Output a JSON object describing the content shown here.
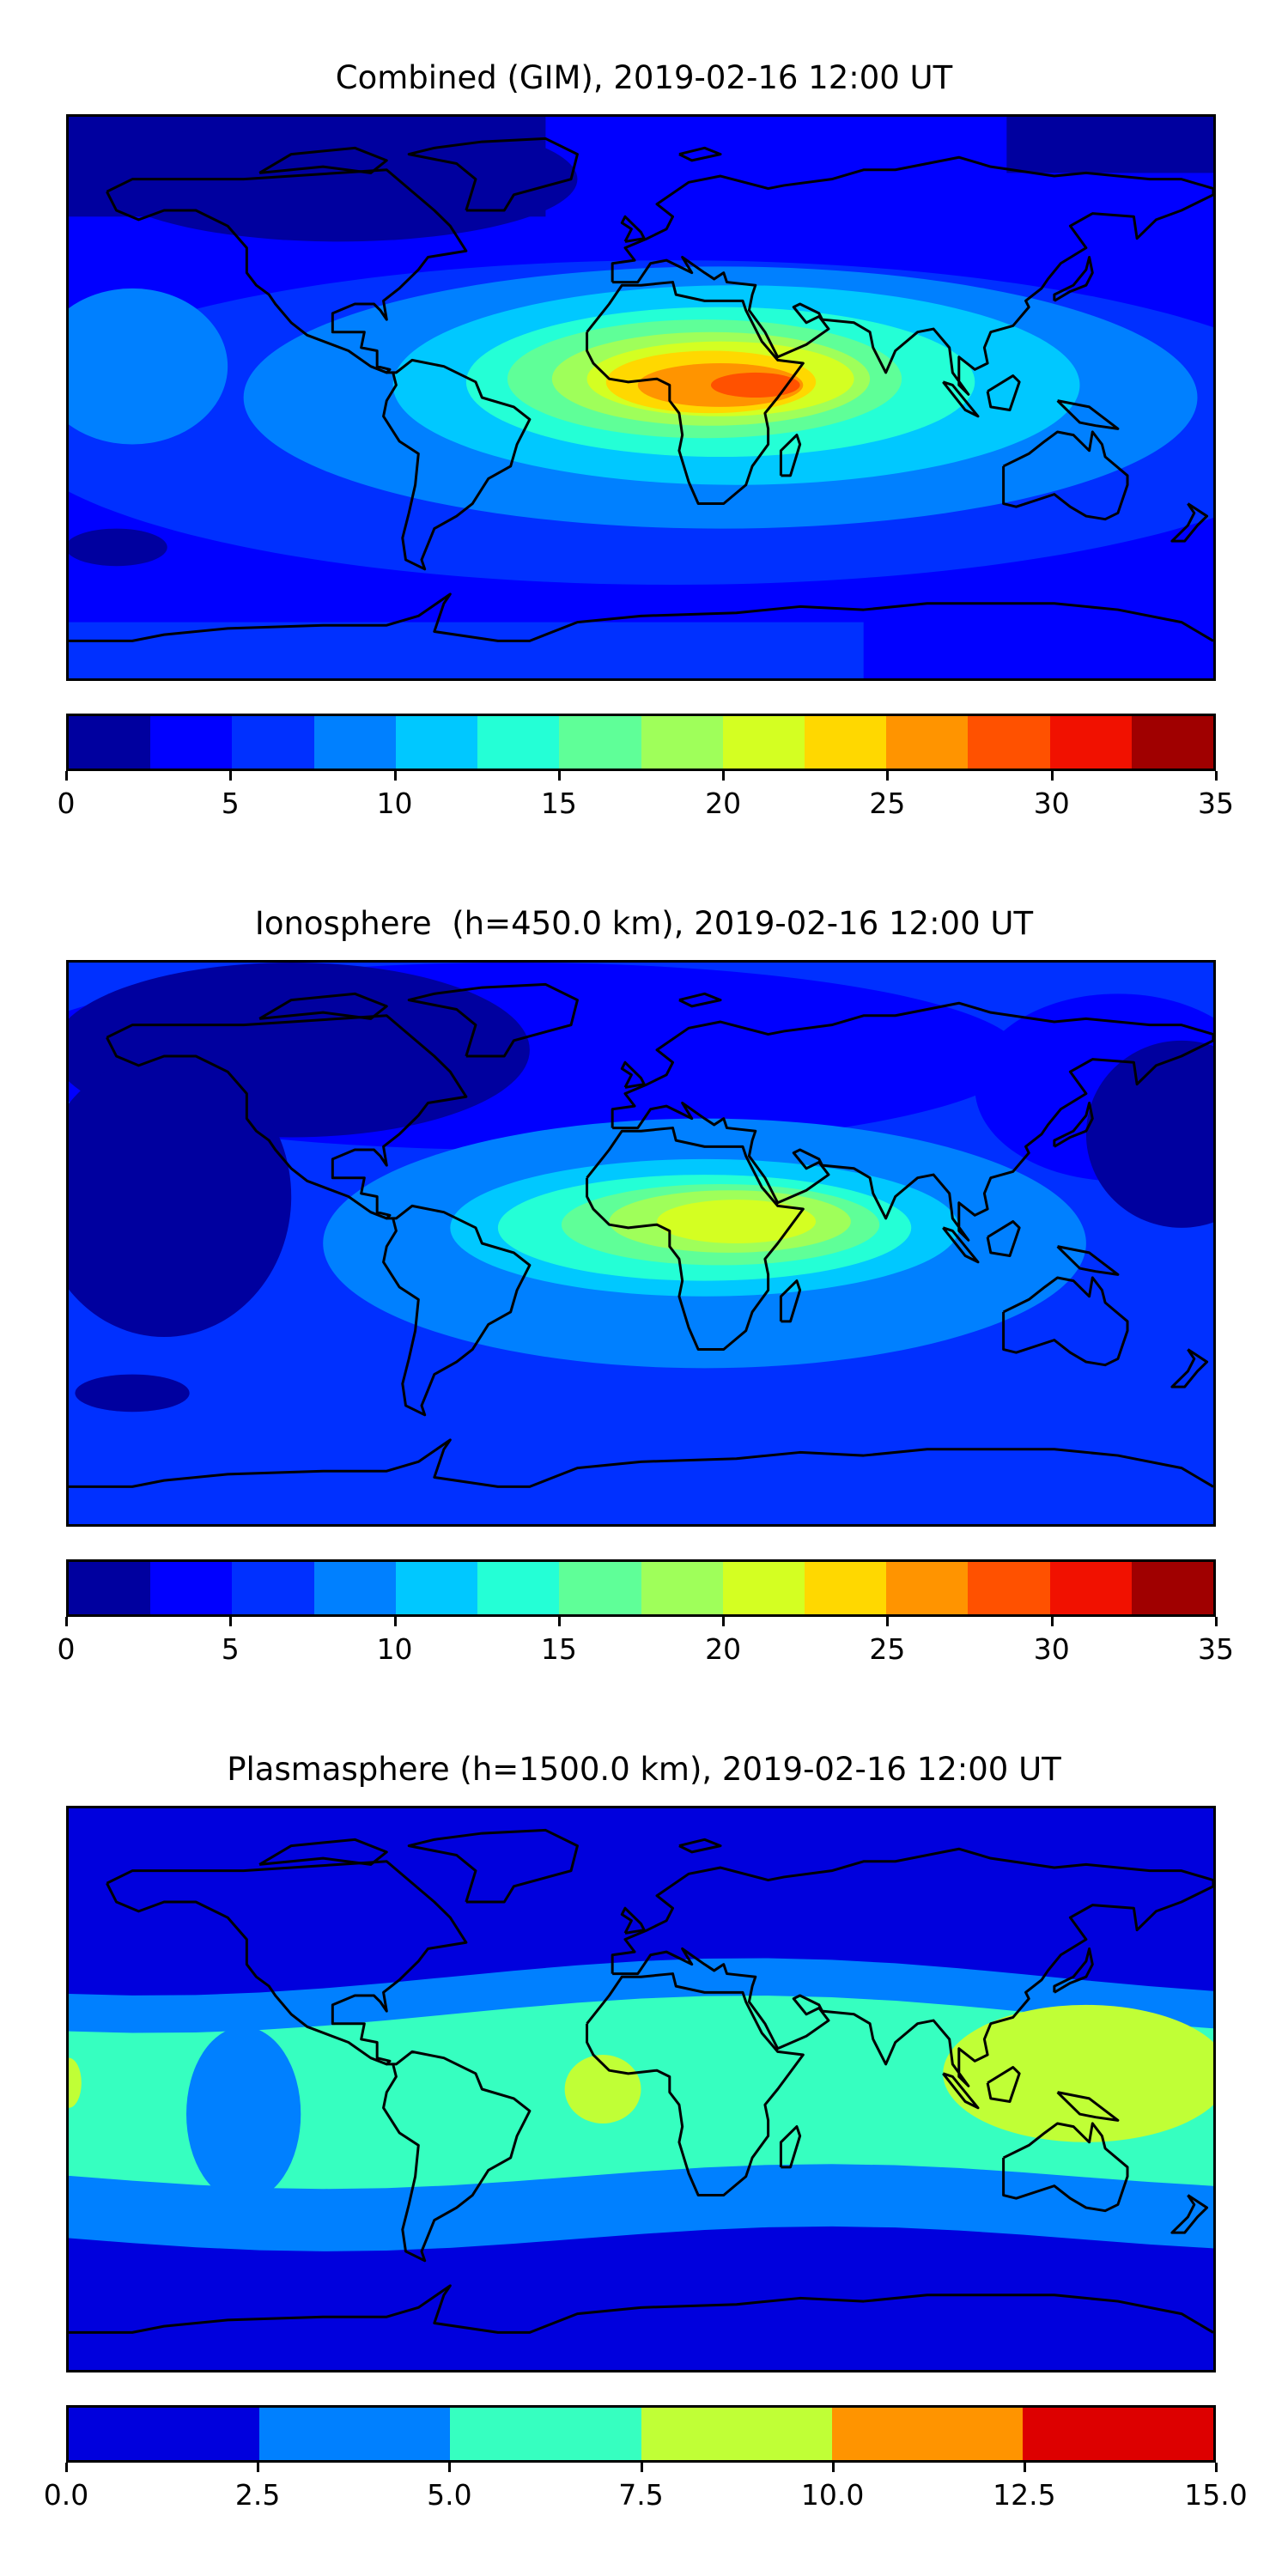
{
  "chart_data": [
    {
      "type": "heatmap",
      "subtype": "filled-contour-map",
      "title": "Combined (GIM), 2019-02-16 12:00 UT",
      "levels": [
        0,
        2.5,
        5,
        7.5,
        10,
        12.5,
        15,
        17.5,
        20,
        22.5,
        25,
        27.5,
        30,
        32.5,
        35
      ],
      "colors": [
        "#00009f",
        "#0000ff",
        "#0030ff",
        "#0080ff",
        "#00c8ff",
        "#24ffd6",
        "#5fff98",
        "#9fff5a",
        "#d4ff22",
        "#ffd800",
        "#ff9400",
        "#ff5100",
        "#f11100",
        "#a00000"
      ],
      "tick_labels": [
        "0",
        "5",
        "10",
        "15",
        "20",
        "25",
        "30",
        "35"
      ],
      "max_region": "central Africa / Indian Ocean, 27.5-30"
    },
    {
      "type": "heatmap",
      "subtype": "filled-contour-map",
      "title": "Ionosphere  (h=450.0 km), 2019-02-16 12:00 UT",
      "levels": [
        0,
        2.5,
        5,
        7.5,
        10,
        12.5,
        15,
        17.5,
        20,
        22.5,
        25,
        27.5,
        30,
        32.5,
        35
      ],
      "colors": [
        "#00009f",
        "#0000ff",
        "#0030ff",
        "#0080ff",
        "#00c8ff",
        "#24ffd6",
        "#5fff98",
        "#9fff5a",
        "#d4ff22",
        "#ffd800",
        "#ff9400",
        "#ff5100",
        "#f11100",
        "#a00000"
      ],
      "tick_labels": [
        "0",
        "5",
        "10",
        "15",
        "20",
        "25",
        "30",
        "35"
      ],
      "max_region": "Africa, 20-22.5"
    },
    {
      "type": "heatmap",
      "subtype": "filled-contour-map",
      "title": "Plasmasphere (h=1500.0 km), 2019-02-16 12:00 UT",
      "levels": [
        0,
        2.5,
        5,
        7.5,
        10,
        12.5,
        15
      ],
      "colors": [
        "#0000dd",
        "#0080ff",
        "#36ffc0",
        "#c0ff36",
        "#ff9400",
        "#dd0000"
      ],
      "tick_labels": [
        "0.0",
        "2.5",
        "5.0",
        "7.5",
        "10.0",
        "12.5",
        "15.0"
      ],
      "max_region": "SE Asia / W Africa, 7.5-10"
    }
  ]
}
